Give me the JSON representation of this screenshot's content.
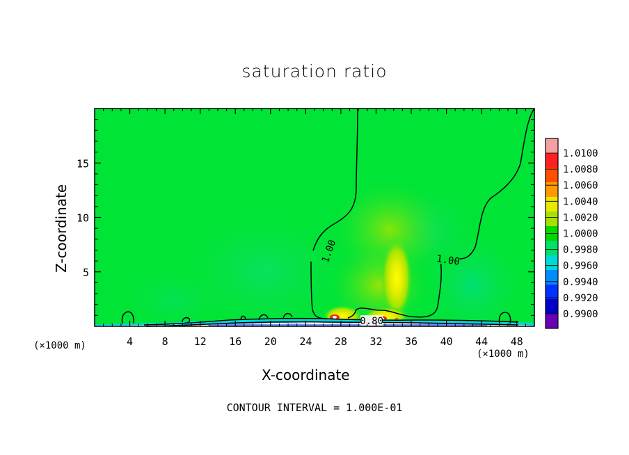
{
  "chart_data": {
    "type": "heatmap",
    "title": "saturation ratio",
    "xlabel": "X-coordinate",
    "ylabel": "Z-coordinate",
    "x_unit": "(×1000 m)",
    "contour_interval_note": "CONTOUR INTERVAL = 1.000E-01",
    "xlim": [
      0,
      50
    ],
    "ylim": [
      0,
      20
    ],
    "x_ticks": [
      4,
      8,
      12,
      16,
      20,
      24,
      28,
      32,
      36,
      40,
      44,
      48
    ],
    "y_ticks": [
      5,
      10,
      15
    ],
    "colorbar": {
      "levels": [
        "1.0100",
        "1.0080",
        "1.0060",
        "1.0040",
        "1.0020",
        "1.0000",
        "0.9980",
        "0.9960",
        "0.9940",
        "0.9920",
        "0.9900"
      ],
      "colors": [
        "#f5a0a0",
        "#ff2020",
        "#ff5000",
        "#ff9a00",
        "#e8e800",
        "#a6e000",
        "#00d800",
        "#00e06a",
        "#00d8d8",
        "#008cff",
        "#0032ff",
        "#0000c8",
        "#6a00b4"
      ]
    },
    "contour_labels": [
      {
        "text": "1.00",
        "x": 26.6,
        "z": 6.9
      },
      {
        "text": "1.00",
        "x": 40.2,
        "z": 6.1
      },
      {
        "text": "0.80",
        "x": 31.5,
        "z": 0.5
      }
    ],
    "background_value": 1.0,
    "colors": {
      "background_field": "#00e436",
      "contour": "#000000"
    }
  }
}
